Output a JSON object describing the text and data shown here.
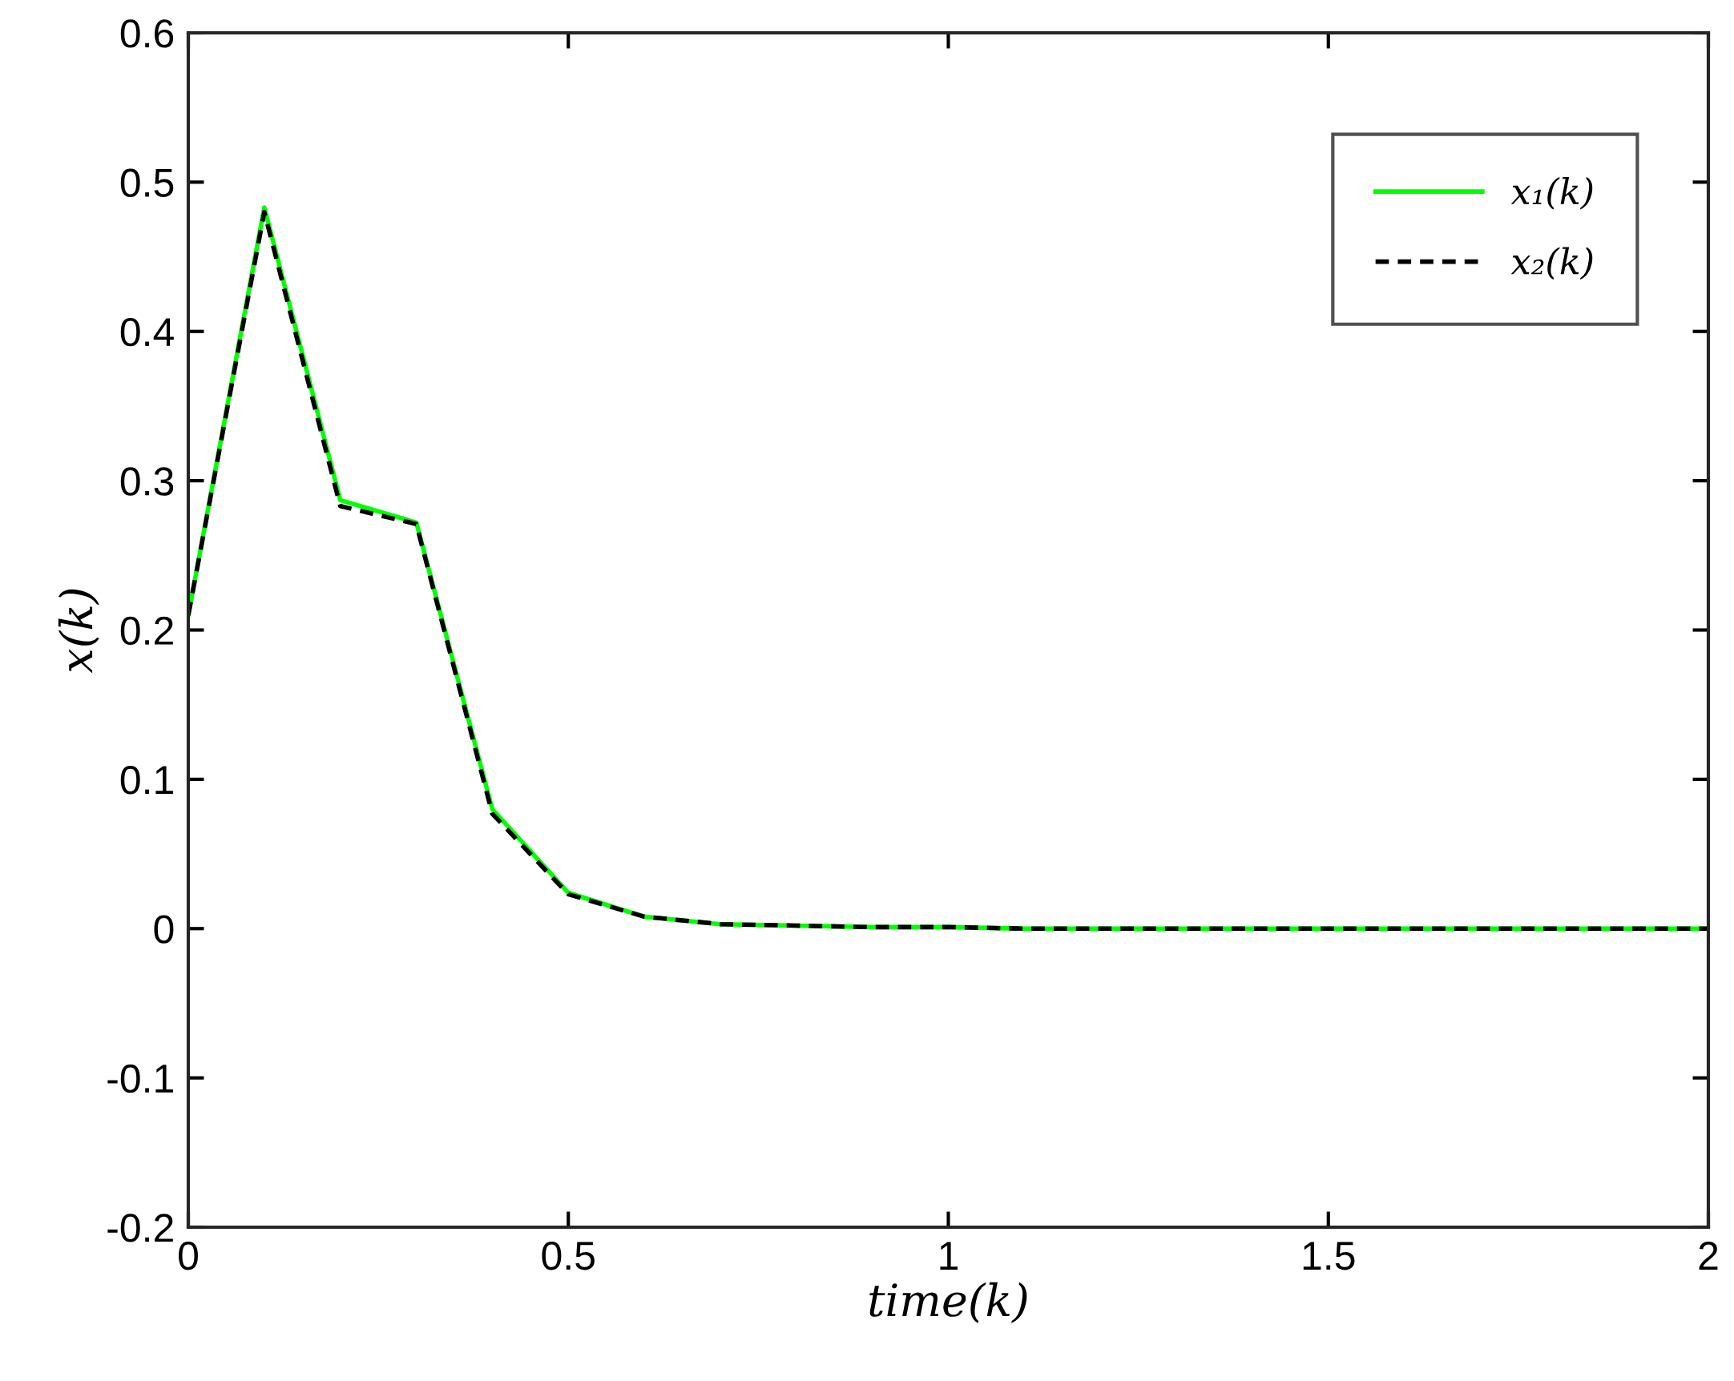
{
  "chart_data": {
    "type": "line",
    "xlabel": "time(k)",
    "ylabel": "x(k)",
    "x": [
      0,
      0.1,
      0.2,
      0.3,
      0.4,
      0.5,
      0.6,
      0.7,
      0.8,
      0.9,
      1.0,
      1.1,
      1.2,
      1.3,
      1.4,
      1.5,
      1.6,
      1.7,
      1.8,
      1.9,
      2.0
    ],
    "series": [
      {
        "name": "x₁(k)",
        "color": "#00ff00",
        "line_style": "solid",
        "values": [
          0.21,
          0.483,
          0.287,
          0.272,
          0.08,
          0.024,
          0.008,
          0.003,
          0.002,
          0.001,
          0.001,
          0.0,
          0.0,
          0.0,
          0.0,
          0.0,
          0.0,
          0.0,
          0.0,
          0.0,
          0.0
        ]
      },
      {
        "name": "x₂(k)",
        "color": "#000000",
        "line_style": "dashed",
        "values": [
          0.21,
          0.48,
          0.283,
          0.271,
          0.077,
          0.023,
          0.008,
          0.003,
          0.002,
          0.001,
          0.001,
          0.0,
          0.0,
          0.0,
          0.0,
          0.0,
          0.0,
          0.0,
          0.0,
          0.0,
          0.0
        ]
      }
    ],
    "xlim": [
      0,
      2
    ],
    "xticks": [
      0,
      0.5,
      1,
      1.5,
      2
    ],
    "ylim": [
      -0.2,
      0.6
    ],
    "yticks": [
      -0.2,
      -0.1,
      0,
      0.1,
      0.2,
      0.3,
      0.4,
      0.5,
      0.6
    ],
    "grid": false,
    "legend": "top right",
    "marker": "none"
  }
}
